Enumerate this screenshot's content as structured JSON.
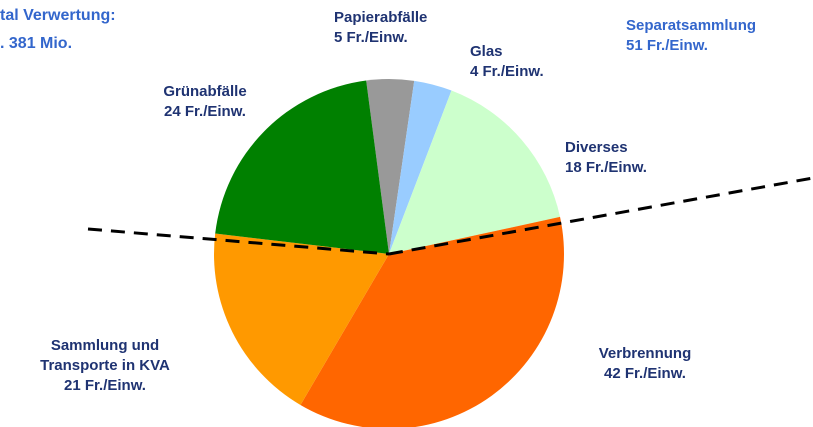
{
  "chart_data": {
    "type": "pie",
    "title": [
      "tal Verwertung:",
      ". 381 Mio."
    ],
    "annotations": [
      "Separatsammlung",
      "51 Fr./Einw."
    ],
    "categories": [
      "Papierabfälle",
      "Glas",
      "Diverses",
      "Verbrennung",
      "Sammlung und\nTransporte in KVA",
      "Grünabfälle"
    ],
    "values": [
      5,
      4,
      18,
      42,
      21,
      24
    ],
    "value_labels": [
      "5 Fr./Einw.",
      "4 Fr./Einw.",
      "18 Fr./Einw.",
      "42 Fr./Einw.",
      "21 Fr./Einw.",
      "24 Fr./Einw."
    ],
    "colors": [
      "#999999",
      "#99ccff",
      "#ccffcc",
      "#ff6600",
      "#ff9900",
      "#008000"
    ]
  }
}
